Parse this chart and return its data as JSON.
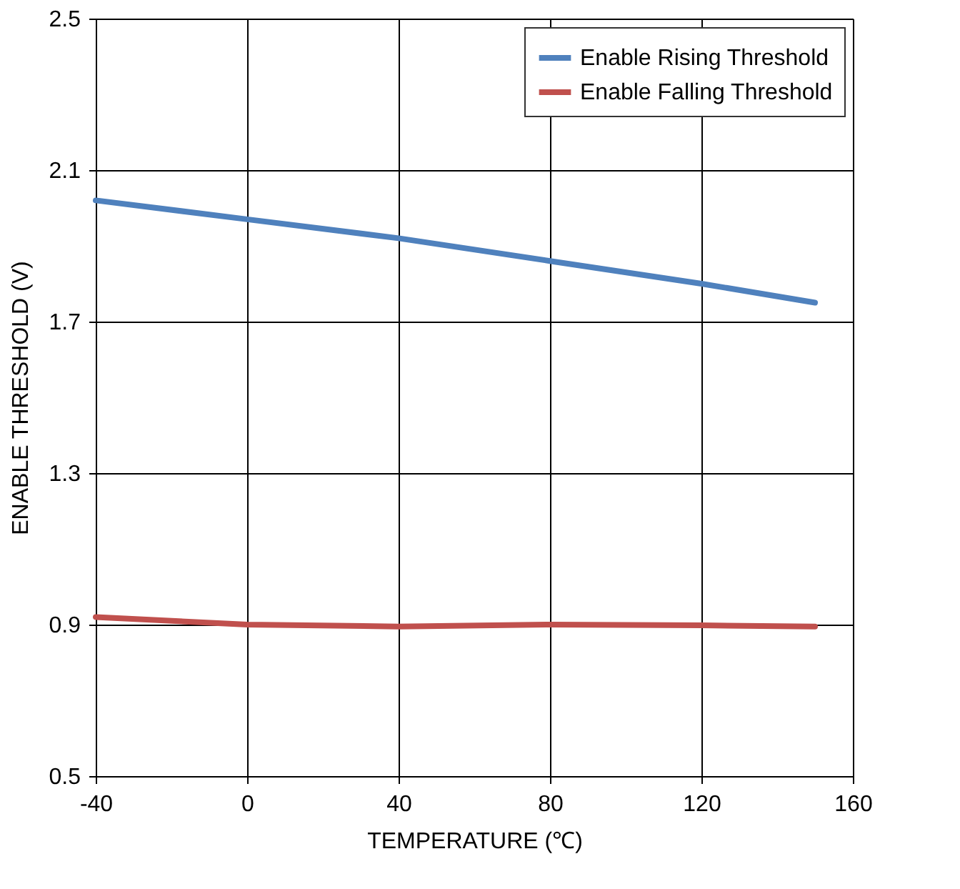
{
  "chart_data": {
    "type": "line",
    "xlabel": "TEMPERATURE (℃)",
    "ylabel": "ENABLE THRESHOLD (V)",
    "x": [
      -40,
      0,
      40,
      80,
      120,
      150
    ],
    "series": [
      {
        "name": "Enable Rising Threshold",
        "color": "#4f81bd",
        "values": [
          2.02,
          1.97,
          1.92,
          1.86,
          1.8,
          1.75
        ]
      },
      {
        "name": "Enable Falling Threshold",
        "color": "#c0504d",
        "values": [
          0.92,
          0.9,
          0.895,
          0.9,
          0.898,
          0.895
        ]
      }
    ],
    "xlim": [
      -40,
      160
    ],
    "xticks": [
      -40,
      0,
      40,
      80,
      120,
      160
    ],
    "ylim": [
      0.5,
      2.5
    ],
    "yticks": [
      0.5,
      0.9,
      1.3,
      1.7,
      2.1,
      2.5
    ],
    "grid": true,
    "legend": "top right",
    "marker": "none",
    "line_style": "solid"
  }
}
